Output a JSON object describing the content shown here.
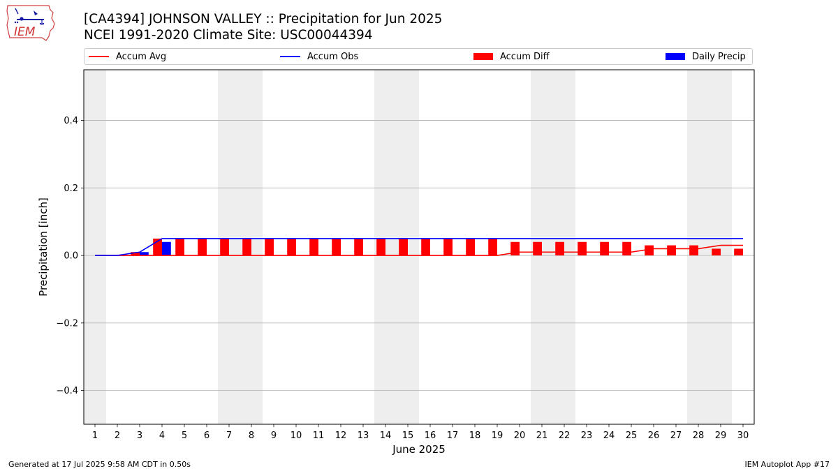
{
  "header": {
    "title_line1": "[CA4394] JOHNSON VALLEY :: Precipitation for Jun 2025",
    "title_line2": "NCEI 1991-2020 Climate Site: USC00044394"
  },
  "logo": {
    "text": "IEM",
    "icon": "iem-iowa-logo-icon"
  },
  "footer": {
    "left": "Generated at 17 Jul 2025 9:58 AM CDT in 0.50s",
    "right": "IEM Autoplot App #17"
  },
  "colors": {
    "accum_avg": "#ff0000",
    "accum_obs": "#0000ff",
    "accum_diff": "#ff0000",
    "daily_precip": "#0000ff",
    "weekend_shade": "#eeeeee",
    "grid": "#b0b0b0"
  },
  "chart_data": {
    "type": "bar",
    "xlabel": "June 2025",
    "ylabel": "Precipitation [inch]",
    "xlim": [
      0.5,
      30.5
    ],
    "ylim": [
      -0.5,
      0.55
    ],
    "yticks": [
      -0.4,
      -0.2,
      0.0,
      0.2,
      0.4
    ],
    "ytick_labels": [
      "−0.4",
      "−0.2",
      "0.0",
      "0.2",
      "0.4"
    ],
    "x": [
      1,
      2,
      3,
      4,
      5,
      6,
      7,
      8,
      9,
      10,
      11,
      12,
      13,
      14,
      15,
      16,
      17,
      18,
      19,
      20,
      21,
      22,
      23,
      24,
      25,
      26,
      27,
      28,
      29,
      30
    ],
    "grid": "y",
    "legend_position": "top",
    "shaded_weekends": [
      [
        1,
        1
      ],
      [
        7,
        8
      ],
      [
        14,
        15
      ],
      [
        21,
        22
      ],
      [
        28,
        29
      ]
    ],
    "series": [
      {
        "name": "Accum Avg",
        "kind": "line",
        "values": [
          0,
          0,
          0,
          0,
          0,
          0,
          0,
          0,
          0,
          0,
          0,
          0,
          0,
          0,
          0,
          0,
          0,
          0,
          0,
          0.01,
          0.01,
          0.01,
          0.01,
          0.01,
          0.01,
          0.02,
          0.02,
          0.02,
          0.03,
          0.03
        ]
      },
      {
        "name": "Accum Obs",
        "kind": "line",
        "values": [
          0,
          0,
          0.01,
          0.05,
          0.05,
          0.05,
          0.05,
          0.05,
          0.05,
          0.05,
          0.05,
          0.05,
          0.05,
          0.05,
          0.05,
          0.05,
          0.05,
          0.05,
          0.05,
          0.05,
          0.05,
          0.05,
          0.05,
          0.05,
          0.05,
          0.05,
          0.05,
          0.05,
          0.05,
          0.05
        ]
      },
      {
        "name": "Accum Diff",
        "kind": "bar",
        "values": [
          0,
          0,
          0.01,
          0.05,
          0.05,
          0.05,
          0.05,
          0.05,
          0.05,
          0.05,
          0.05,
          0.05,
          0.05,
          0.05,
          0.05,
          0.05,
          0.05,
          0.05,
          0.05,
          0.04,
          0.04,
          0.04,
          0.04,
          0.04,
          0.04,
          0.03,
          0.03,
          0.03,
          0.02,
          0.02
        ]
      },
      {
        "name": "Daily Precip",
        "kind": "bar",
        "values": [
          0,
          0,
          0.01,
          0.04,
          0,
          0,
          0,
          0,
          0,
          0,
          0,
          0,
          0,
          0,
          0,
          0,
          0,
          0,
          0,
          0,
          0,
          0,
          0,
          0,
          0,
          0,
          0,
          0,
          0,
          0
        ]
      }
    ]
  }
}
